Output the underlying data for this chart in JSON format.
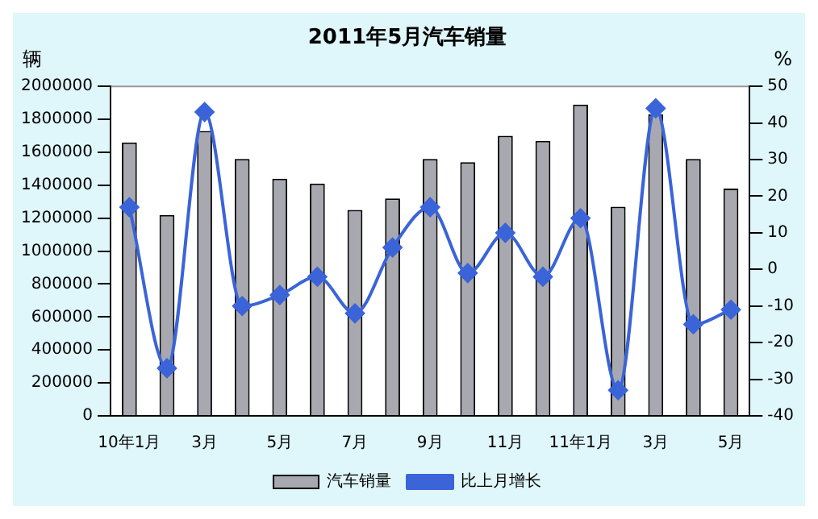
{
  "chart_data": {
    "type": "bar",
    "title": "2011年5月汽车销量",
    "ylabel": "辆",
    "y2label": "%",
    "categories": [
      "10年1月",
      null,
      "3月",
      null,
      "5月",
      null,
      "7月",
      null,
      "9月",
      null,
      "11月",
      null,
      "11年1月",
      null,
      "3月",
      null,
      "5月"
    ],
    "series": [
      {
        "name": "汽车销量",
        "color": "#a8a8b0",
        "values": [
          1660000,
          1220000,
          1730000,
          1560000,
          1440000,
          1410000,
          1250000,
          1320000,
          1560000,
          1540000,
          1700000,
          1670000,
          1890000,
          1270000,
          1830000,
          1560000,
          1380000
        ]
      },
      {
        "name": "比上月增长",
        "type": "line",
        "axis": "y2",
        "color": "#3a64d8",
        "marker": "diamond",
        "values": [
          17,
          -27,
          43,
          -10,
          -7,
          -2,
          -12,
          6,
          17,
          -1,
          10,
          -2,
          14,
          -33,
          44,
          -15,
          -11
        ]
      }
    ],
    "ylim": [
      0,
      2000000
    ],
    "yticks": [
      0,
      200000,
      400000,
      600000,
      800000,
      1000000,
      1200000,
      1400000,
      1600000,
      1800000,
      2000000
    ],
    "y2lim": [
      -40,
      50
    ],
    "y2ticks": [
      -40,
      -30,
      -20,
      -10,
      0,
      10,
      20,
      30,
      40,
      50
    ],
    "legend": "bottom"
  }
}
